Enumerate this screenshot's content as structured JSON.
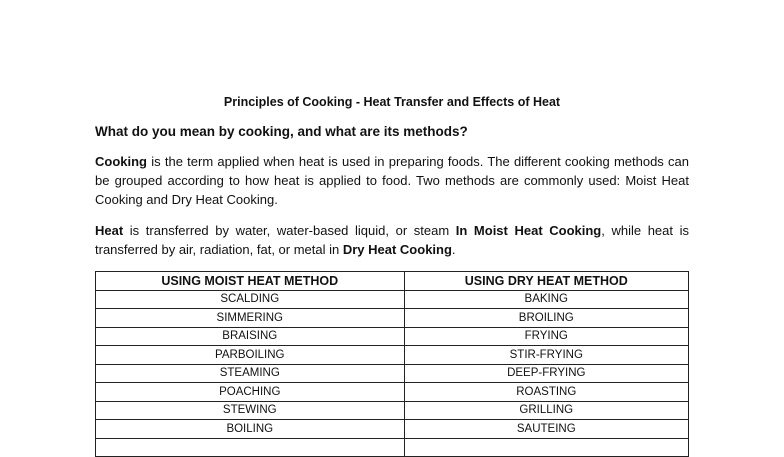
{
  "document": {
    "title": "Principles of Cooking - Heat Transfer and Effects of Heat",
    "question": "What do you mean by cooking, and what are its methods?",
    "para1": {
      "bold_lead": "Cooking",
      "text": " is the term applied when heat is used in preparing foods. The different cooking methods can be grouped according to how heat is applied to food. Two methods are commonly used: Moist Heat Cooking and Dry Heat Cooking."
    },
    "para2": {
      "bold_lead": "Heat",
      "text_a": " is transferred by water, water-based liquid, or steam ",
      "bold_moist": "In Moist Heat Cooking",
      "text_b": ", while heat is transferred by air, radiation, fat, or metal in ",
      "bold_dry": "Dry Heat Cooking",
      "text_c": "."
    },
    "table": {
      "headers": [
        "USING MOIST HEAT METHOD",
        "USING DRY HEAT METHOD"
      ],
      "rows": [
        [
          "SCALDING",
          "BAKING"
        ],
        [
          "SIMMERING",
          "BROILING"
        ],
        [
          "BRAISING",
          "FRYING"
        ],
        [
          "PARBOILING",
          "STIR-FRYING"
        ],
        [
          "STEAMING",
          "DEEP-FRYING"
        ],
        [
          "POACHING",
          "ROASTING"
        ],
        [
          "STEWING",
          "GRILLING"
        ],
        [
          "BOILING",
          "SAUTEING"
        ],
        [
          "",
          ""
        ]
      ]
    }
  }
}
